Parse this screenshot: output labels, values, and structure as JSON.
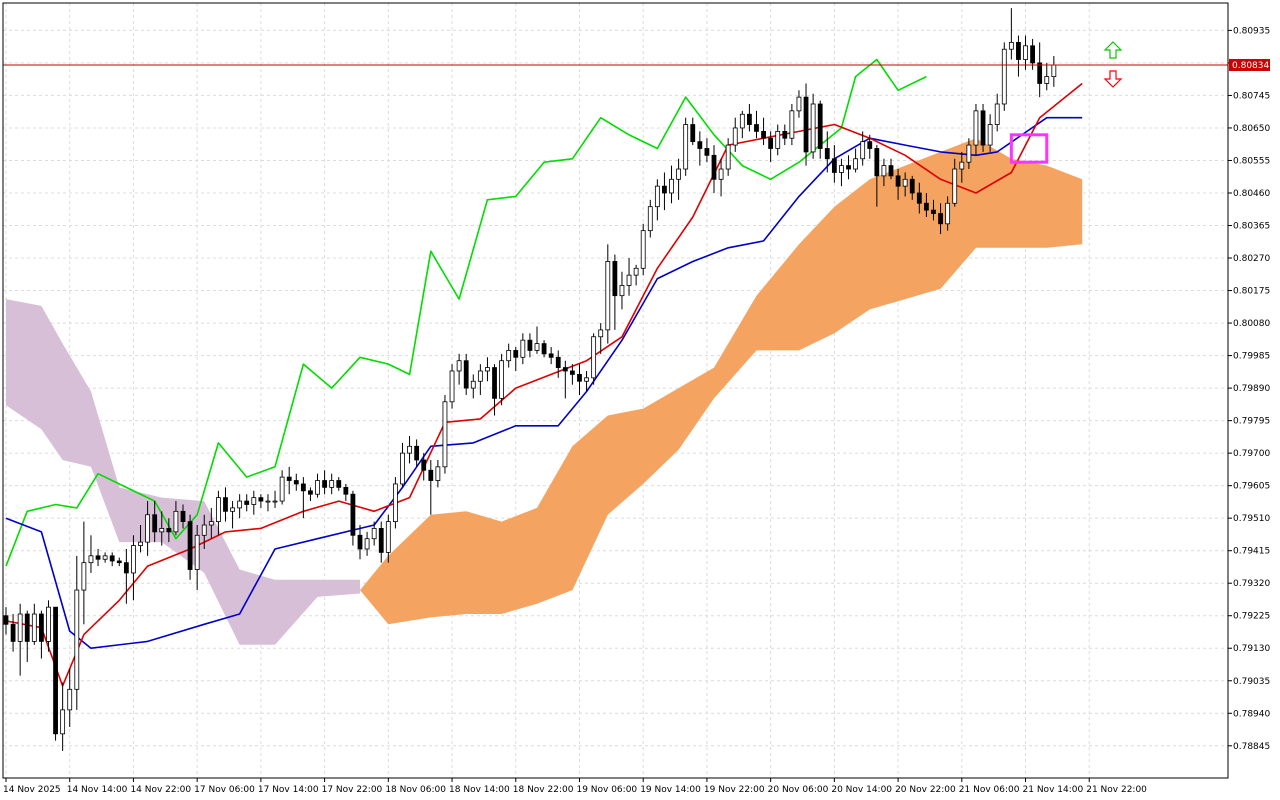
{
  "chart_data": {
    "type": "candlestick",
    "indicator": "Ichimoku Kinko Hyo",
    "grid": true,
    "y_ticks": [
      "0.80935",
      "0.80840",
      "0.80745",
      "0.80650",
      "0.80555",
      "0.80460",
      "0.80365",
      "0.80270",
      "0.80175",
      "0.80080",
      "0.79985",
      "0.79890",
      "0.79795",
      "0.79700",
      "0.79605",
      "0.79510",
      "0.79415",
      "0.79320",
      "0.79225",
      "0.79130",
      "0.79035",
      "0.78940",
      "0.78845"
    ],
    "ylim": [
      0.788,
      0.8101
    ],
    "x_ticks": [
      "14 Nov 2025",
      "14 Nov 14:00",
      "14 Nov 22:00",
      "17 Nov 06:00",
      "17 Nov 14:00",
      "17 Nov 22:00",
      "18 Nov 06:00",
      "18 Nov 14:00",
      "18 Nov 22:00",
      "19 Nov 06:00",
      "19 Nov 14:00",
      "19 Nov 22:00",
      "20 Nov 06:00",
      "20 Nov 14:00",
      "20 Nov 22:00",
      "21 Nov 06:00",
      "21 Nov 14:00",
      "21 Nov 22:00"
    ],
    "current_price": "0.80834",
    "colors": {
      "background": "#ffffff",
      "grid": "#dcdcdc",
      "axis": "#000000",
      "tenkan": "#e00000",
      "kijun": "#0000cc",
      "chikou": "#00dd00",
      "kumo_bull": "#f4a460",
      "kumo_bear": "#d8bfd8",
      "price_line": "#cc0000",
      "highlight_box": "#ff33ff",
      "arrow_up": "#00cc00",
      "arrow_down": "#ff0000",
      "candle_bull": "#ffffff",
      "candle_bear": "#000000"
    },
    "candles": [
      [
        0.79225,
        0.7925,
        0.7917,
        0.792
      ],
      [
        0.792,
        0.7923,
        0.7912,
        0.7915
      ],
      [
        0.7915,
        0.7926,
        0.7905,
        0.7923
      ],
      [
        0.7923,
        0.7924,
        0.7909,
        0.7915
      ],
      [
        0.7915,
        0.7926,
        0.7914,
        0.7923
      ],
      [
        0.7923,
        0.7924,
        0.791,
        0.7915
      ],
      [
        0.7915,
        0.7927,
        0.7912,
        0.7925
      ],
      [
        0.7925,
        0.7925,
        0.7886,
        0.7888
      ],
      [
        0.7888,
        0.7903,
        0.7883,
        0.7895
      ],
      [
        0.7895,
        0.7907,
        0.789,
        0.7901
      ],
      [
        0.7901,
        0.794,
        0.7895,
        0.793
      ],
      [
        0.793,
        0.795,
        0.792,
        0.7938
      ],
      [
        0.7938,
        0.7946,
        0.7935,
        0.794
      ],
      [
        0.794,
        0.7942,
        0.7937,
        0.7939
      ],
      [
        0.7939,
        0.7941,
        0.7938,
        0.794
      ],
      [
        0.794,
        0.7941,
        0.7937,
        0.79385
      ],
      [
        0.79385,
        0.79395,
        0.7937,
        0.7938
      ],
      [
        0.7938,
        0.7942,
        0.7926,
        0.7935
      ],
      [
        0.7935,
        0.7946,
        0.7927,
        0.7943
      ],
      [
        0.7943,
        0.7949,
        0.7941,
        0.7944
      ],
      [
        0.7944,
        0.7956,
        0.794,
        0.7952
      ],
      [
        0.7952,
        0.7956,
        0.7944,
        0.7947
      ],
      [
        0.7947,
        0.7953,
        0.7943,
        0.7948
      ],
      [
        0.7948,
        0.7951,
        0.7944,
        0.7947
      ],
      [
        0.7947,
        0.7956,
        0.7946,
        0.7953
      ],
      [
        0.7953,
        0.7955,
        0.7948,
        0.795
      ],
      [
        0.795,
        0.7952,
        0.7933,
        0.7936
      ],
      [
        0.7936,
        0.7949,
        0.793,
        0.7946
      ],
      [
        0.7946,
        0.7952,
        0.7942,
        0.7949
      ],
      [
        0.7949,
        0.7954,
        0.7945,
        0.795
      ],
      [
        0.795,
        0.7959,
        0.7946,
        0.7957
      ],
      [
        0.7957,
        0.796,
        0.795,
        0.7953
      ],
      [
        0.7953,
        0.7956,
        0.7948,
        0.7954
      ],
      [
        0.7954,
        0.7958,
        0.7951,
        0.7956
      ],
      [
        0.7956,
        0.7958,
        0.7953,
        0.7955
      ],
      [
        0.7955,
        0.7959,
        0.7952,
        0.7957
      ],
      [
        0.7957,
        0.7958,
        0.7954,
        0.7956
      ],
      [
        0.7956,
        0.7958,
        0.7953,
        0.7956
      ],
      [
        0.7956,
        0.7959,
        0.7954,
        0.7956
      ],
      [
        0.7956,
        0.7965,
        0.7955,
        0.7963
      ],
      [
        0.7963,
        0.7966,
        0.7958,
        0.7962
      ],
      [
        0.7962,
        0.7964,
        0.7959,
        0.7961
      ],
      [
        0.7961,
        0.7963,
        0.7951,
        0.7959
      ],
      [
        0.7959,
        0.796,
        0.7956,
        0.7958
      ],
      [
        0.7958,
        0.7964,
        0.7957,
        0.7962
      ],
      [
        0.7962,
        0.7965,
        0.7958,
        0.796
      ],
      [
        0.796,
        0.7964,
        0.7958,
        0.7962
      ],
      [
        0.7962,
        0.7963,
        0.7959,
        0.796
      ],
      [
        0.796,
        0.7961,
        0.7956,
        0.7958
      ],
      [
        0.7958,
        0.7959,
        0.7943,
        0.7946
      ],
      [
        0.7946,
        0.7949,
        0.7939,
        0.7942
      ],
      [
        0.7942,
        0.7947,
        0.794,
        0.7945
      ],
      [
        0.7945,
        0.795,
        0.7943,
        0.7948
      ],
      [
        0.7948,
        0.795,
        0.7938,
        0.7941
      ],
      [
        0.7941,
        0.7952,
        0.7938,
        0.795
      ],
      [
        0.795,
        0.7963,
        0.7948,
        0.7961
      ],
      [
        0.7961,
        0.7973,
        0.796,
        0.797
      ],
      [
        0.797,
        0.7975,
        0.7967,
        0.7972
      ],
      [
        0.7972,
        0.7974,
        0.7966,
        0.7968
      ],
      [
        0.7968,
        0.797,
        0.7962,
        0.7965
      ],
      [
        0.7965,
        0.7968,
        0.7952,
        0.7962
      ],
      [
        0.7962,
        0.7968,
        0.796,
        0.7966
      ],
      [
        0.7966,
        0.7987,
        0.7964,
        0.7985
      ],
      [
        0.7985,
        0.7996,
        0.7983,
        0.7994
      ],
      [
        0.7994,
        0.7999,
        0.799,
        0.7997
      ],
      [
        0.7997,
        0.7999,
        0.7987,
        0.7989
      ],
      [
        0.7989,
        0.7993,
        0.7986,
        0.7991
      ],
      [
        0.7991,
        0.7996,
        0.7987,
        0.7994
      ],
      [
        0.7994,
        0.7998,
        0.7991,
        0.7995
      ],
      [
        0.7995,
        0.7996,
        0.7981,
        0.7986
      ],
      [
        0.7986,
        0.7999,
        0.7984,
        0.7997
      ],
      [
        0.7997,
        0.8002,
        0.7995,
        0.8
      ],
      [
        0.8,
        0.8001,
        0.7994,
        0.7998
      ],
      [
        0.7998,
        0.8005,
        0.7996,
        0.8003
      ],
      [
        0.8003,
        0.8005,
        0.7998,
        0.8
      ],
      [
        0.8,
        0.8007,
        0.7999,
        0.8002
      ],
      [
        0.8002,
        0.8003,
        0.7998,
        0.7999
      ],
      [
        0.7999,
        0.8001,
        0.7996,
        0.7998
      ],
      [
        0.7998,
        0.8,
        0.7992,
        0.7995
      ],
      [
        0.7995,
        0.7997,
        0.7986,
        0.7994
      ],
      [
        0.7994,
        0.7996,
        0.799,
        0.7993
      ],
      [
        0.7993,
        0.7996,
        0.7987,
        0.7991
      ],
      [
        0.7991,
        0.7994,
        0.7988,
        0.7992
      ],
      [
        0.7992,
        0.8005,
        0.799,
        0.8004
      ],
      [
        0.8004,
        0.8008,
        0.7999,
        0.8006
      ],
      [
        0.8006,
        0.8031,
        0.8002,
        0.8026
      ],
      [
        0.8026,
        0.8028,
        0.8006,
        0.8016
      ],
      [
        0.8016,
        0.8023,
        0.8012,
        0.8019
      ],
      [
        0.8019,
        0.8027,
        0.8016,
        0.8022
      ],
      [
        0.8022,
        0.8025,
        0.8019,
        0.8024
      ],
      [
        0.8024,
        0.8037,
        0.8022,
        0.8035
      ],
      [
        0.8035,
        0.8044,
        0.8033,
        0.8042
      ],
      [
        0.8042,
        0.805,
        0.8038,
        0.8048
      ],
      [
        0.8048,
        0.8052,
        0.8041,
        0.8046
      ],
      [
        0.8046,
        0.8054,
        0.8043,
        0.805
      ],
      [
        0.805,
        0.8056,
        0.8044,
        0.8053
      ],
      [
        0.8053,
        0.8068,
        0.8051,
        0.8066
      ],
      [
        0.8066,
        0.8068,
        0.806,
        0.8061
      ],
      [
        0.8061,
        0.8064,
        0.8054,
        0.8059
      ],
      [
        0.8059,
        0.8062,
        0.8055,
        0.8057
      ],
      [
        0.8057,
        0.806,
        0.8046,
        0.805
      ],
      [
        0.805,
        0.8056,
        0.8045,
        0.8053
      ],
      [
        0.8053,
        0.8062,
        0.8051,
        0.806
      ],
      [
        0.806,
        0.8068,
        0.8058,
        0.8065
      ],
      [
        0.8065,
        0.807,
        0.8062,
        0.8069
      ],
      [
        0.8069,
        0.8072,
        0.8064,
        0.8066
      ],
      [
        0.8066,
        0.807,
        0.8062,
        0.8064
      ],
      [
        0.8064,
        0.8068,
        0.806,
        0.8062
      ],
      [
        0.8062,
        0.8064,
        0.8055,
        0.8059
      ],
      [
        0.8059,
        0.8066,
        0.8057,
        0.8064
      ],
      [
        0.8064,
        0.8066,
        0.806,
        0.8062
      ],
      [
        0.8062,
        0.8072,
        0.806,
        0.807
      ],
      [
        0.807,
        0.8076,
        0.8068,
        0.8074
      ],
      [
        0.8074,
        0.8078,
        0.8054,
        0.8058
      ],
      [
        0.8058,
        0.8075,
        0.8056,
        0.8072
      ],
      [
        0.8072,
        0.8073,
        0.8056,
        0.8059
      ],
      [
        0.8059,
        0.8064,
        0.8052,
        0.8056
      ],
      [
        0.8056,
        0.806,
        0.8049,
        0.8052
      ],
      [
        0.8052,
        0.8056,
        0.8048,
        0.8054
      ],
      [
        0.8054,
        0.8057,
        0.805,
        0.8053
      ],
      [
        0.8053,
        0.8059,
        0.8052,
        0.8056
      ],
      [
        0.8056,
        0.8064,
        0.8054,
        0.8061
      ],
      [
        0.8061,
        0.8063,
        0.8056,
        0.8059
      ],
      [
        0.8059,
        0.806,
        0.8042,
        0.8051
      ],
      [
        0.8051,
        0.8056,
        0.8048,
        0.8054
      ],
      [
        0.8054,
        0.8056,
        0.805,
        0.8051
      ],
      [
        0.8051,
        0.8053,
        0.8044,
        0.8048
      ],
      [
        0.8048,
        0.8052,
        0.8045,
        0.805
      ],
      [
        0.805,
        0.8051,
        0.8044,
        0.8046
      ],
      [
        0.8046,
        0.8049,
        0.804,
        0.8043
      ],
      [
        0.8043,
        0.8046,
        0.8039,
        0.8041
      ],
      [
        0.8041,
        0.8044,
        0.8038,
        0.804
      ],
      [
        0.804,
        0.8043,
        0.8034,
        0.8037
      ],
      [
        0.8037,
        0.8045,
        0.8035,
        0.8043
      ],
      [
        0.8043,
        0.8056,
        0.8042,
        0.8053
      ],
      [
        0.8053,
        0.8058,
        0.8049,
        0.8055
      ],
      [
        0.8055,
        0.8062,
        0.8053,
        0.806
      ],
      [
        0.806,
        0.8072,
        0.8057,
        0.807
      ],
      [
        0.807,
        0.8072,
        0.8058,
        0.806
      ],
      [
        0.806,
        0.8069,
        0.8058,
        0.8066
      ],
      [
        0.8066,
        0.8075,
        0.8064,
        0.8072
      ],
      [
        0.8072,
        0.809,
        0.807,
        0.8088
      ],
      [
        0.8088,
        0.81,
        0.8085,
        0.809
      ],
      [
        0.809,
        0.8092,
        0.808,
        0.8085
      ],
      [
        0.8085,
        0.8092,
        0.8082,
        0.8089
      ],
      [
        0.8089,
        0.8091,
        0.8082,
        0.8084
      ],
      [
        0.8084,
        0.809,
        0.8074,
        0.8078
      ],
      [
        0.8078,
        0.8084,
        0.8076,
        0.808
      ],
      [
        0.808,
        0.8086,
        0.8077,
        0.80834
      ]
    ],
    "tenkan": [
      [
        0,
        0.7921
      ],
      [
        5,
        0.7919
      ],
      [
        8,
        0.7902
      ],
      [
        11,
        0.7917
      ],
      [
        16,
        0.7927
      ],
      [
        20,
        0.7937
      ],
      [
        26,
        0.7942
      ],
      [
        31,
        0.7947
      ],
      [
        36,
        0.7948
      ],
      [
        42,
        0.7953
      ],
      [
        47,
        0.7956
      ],
      [
        52,
        0.7953
      ],
      [
        57,
        0.7957
      ],
      [
        62,
        0.7979
      ],
      [
        67,
        0.798
      ],
      [
        72,
        0.7989
      ],
      [
        77,
        0.7993
      ],
      [
        82,
        0.7997
      ],
      [
        87,
        0.8004
      ],
      [
        92,
        0.8024
      ],
      [
        97,
        0.8039
      ],
      [
        102,
        0.806
      ],
      [
        107,
        0.8062
      ],
      [
        112,
        0.8064
      ],
      [
        117,
        0.8066
      ],
      [
        122,
        0.8062
      ],
      [
        127,
        0.8057
      ],
      [
        132,
        0.805
      ],
      [
        137,
        0.8046
      ],
      [
        142,
        0.8052
      ],
      [
        146,
        0.8068
      ],
      [
        152,
        0.8078
      ]
    ],
    "kijun": [
      [
        0,
        0.7951
      ],
      [
        5,
        0.7947
      ],
      [
        9,
        0.7918
      ],
      [
        12,
        0.7913
      ],
      [
        20,
        0.7915
      ],
      [
        28,
        0.792
      ],
      [
        33,
        0.7923
      ],
      [
        38,
        0.7942
      ],
      [
        44,
        0.7945
      ],
      [
        52,
        0.7949
      ],
      [
        56,
        0.796
      ],
      [
        60,
        0.7972
      ],
      [
        66,
        0.7973
      ],
      [
        72,
        0.7978
      ],
      [
        78,
        0.7978
      ],
      [
        82,
        0.7988
      ],
      [
        87,
        0.8003
      ],
      [
        92,
        0.8021
      ],
      [
        97,
        0.8026
      ],
      [
        102,
        0.803
      ],
      [
        107,
        0.8032
      ],
      [
        112,
        0.8045
      ],
      [
        117,
        0.8056
      ],
      [
        122,
        0.8062
      ],
      [
        127,
        0.806
      ],
      [
        132,
        0.8058
      ],
      [
        137,
        0.8057
      ],
      [
        140,
        0.8058
      ],
      [
        147,
        0.8068
      ],
      [
        152,
        0.8068
      ]
    ],
    "chikou": [
      [
        0,
        0.7937
      ],
      [
        3,
        0.7953
      ],
      [
        7,
        0.7955
      ],
      [
        10,
        0.7954
      ],
      [
        13,
        0.7964
      ],
      [
        17,
        0.796
      ],
      [
        21,
        0.7956
      ],
      [
        24,
        0.7945
      ],
      [
        27,
        0.7952
      ],
      [
        30,
        0.7973
      ],
      [
        34,
        0.7963
      ],
      [
        38,
        0.7966
      ],
      [
        42,
        0.7996
      ],
      [
        46,
        0.7989
      ],
      [
        50,
        0.7998
      ],
      [
        54,
        0.7996
      ],
      [
        57,
        0.7993
      ],
      [
        60,
        0.8029
      ],
      [
        64,
        0.8015
      ],
      [
        68,
        0.8044
      ],
      [
        72,
        0.8045
      ],
      [
        76,
        0.8055
      ],
      [
        80,
        0.8056
      ],
      [
        84,
        0.8068
      ],
      [
        88,
        0.8063
      ],
      [
        92,
        0.8059
      ],
      [
        96,
        0.8074
      ],
      [
        100,
        0.8063
      ],
      [
        104,
        0.8054
      ],
      [
        108,
        0.805
      ],
      [
        112,
        0.8055
      ],
      [
        115,
        0.806
      ],
      [
        118,
        0.8065
      ],
      [
        120,
        0.808
      ],
      [
        123,
        0.8085
      ],
      [
        126,
        0.8076
      ],
      [
        130,
        0.808
      ]
    ],
    "kumo_bear": [
      [
        0,
        0.8015,
        0.7984
      ],
      [
        5,
        0.8013,
        0.7977
      ],
      [
        8,
        0.8002,
        0.7968
      ],
      [
        12,
        0.7988,
        0.7966
      ],
      [
        16,
        0.796,
        0.7944
      ],
      [
        22,
        0.7957,
        0.7944
      ],
      [
        28,
        0.7956,
        0.7935
      ],
      [
        33,
        0.7936,
        0.7914
      ],
      [
        38,
        0.7933,
        0.7914
      ],
      [
        44,
        0.7933,
        0.7928
      ],
      [
        50,
        0.7933,
        0.7929
      ]
    ],
    "kumo_bull": [
      [
        50,
        0.793,
        0.793
      ],
      [
        54,
        0.794,
        0.792
      ],
      [
        60,
        0.7952,
        0.7922
      ],
      [
        65,
        0.7953,
        0.7923
      ],
      [
        70,
        0.795,
        0.7923
      ],
      [
        75,
        0.7954,
        0.7926
      ],
      [
        80,
        0.7972,
        0.793
      ],
      [
        85,
        0.7981,
        0.7952
      ],
      [
        90,
        0.7983,
        0.7961
      ],
      [
        95,
        0.7989,
        0.7971
      ],
      [
        100,
        0.7995,
        0.7986
      ],
      [
        106,
        0.8016,
        0.8
      ],
      [
        112,
        0.8031,
        0.8
      ],
      [
        117,
        0.8042,
        0.8005
      ],
      [
        122,
        0.805,
        0.8012
      ],
      [
        127,
        0.8054,
        0.8015
      ],
      [
        132,
        0.8058,
        0.8018
      ],
      [
        137,
        0.8062,
        0.803
      ],
      [
        142,
        0.8056,
        0.803
      ],
      [
        147,
        0.8054,
        0.803
      ],
      [
        152,
        0.805,
        0.8031
      ]
    ],
    "highlight": {
      "from": 142,
      "to": 147,
      "price_top": 0.8063,
      "price_bottom": 0.8055
    }
  }
}
